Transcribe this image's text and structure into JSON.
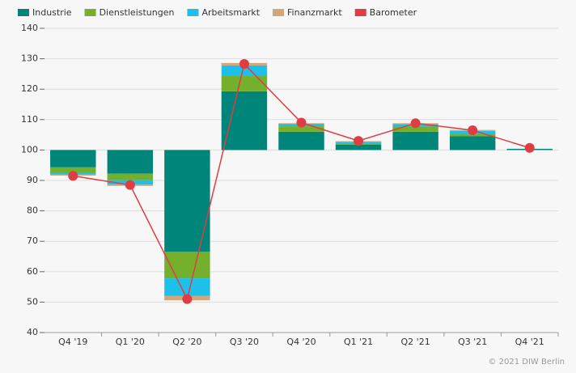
{
  "chart_data": {
    "type": "bar",
    "categories": [
      "Q4 '19",
      "Q1 '20",
      "Q2 '20",
      "Q3 '20",
      "Q4 '20",
      "Q1 '21",
      "Q2 '21",
      "Q3 '21",
      "Q4 '21"
    ],
    "baseline": 100,
    "series": [
      {
        "name": "Industrie",
        "color": "#00857a",
        "values": [
          -5.7,
          -7.8,
          -33.4,
          19.3,
          6.0,
          1.8,
          6.0,
          4.5,
          0.4
        ]
      },
      {
        "name": "Dienstleistungen",
        "color": "#74b02c",
        "values": [
          -1.9,
          -2.1,
          -8.8,
          5.0,
          1.8,
          0.4,
          1.7,
          0.8,
          0
        ]
      },
      {
        "name": "Arbeitsmarkt",
        "color": "#1ec0e9",
        "values": [
          -0.5,
          -1.5,
          -5.8,
          3.5,
          0.8,
          0.5,
          0.8,
          1.0,
          0
        ]
      },
      {
        "name": "Finanzmarkt",
        "color": "#d2a679",
        "values": [
          -0.3,
          -0.4,
          -1.4,
          0.8,
          0.2,
          0.2,
          0.3,
          0.3,
          0
        ]
      },
      {
        "name": "Barometer",
        "color": "#e03c44",
        "type": "line",
        "values": [
          91.5,
          88.5,
          51.0,
          128.3,
          109.0,
          103.0,
          108.8,
          106.5,
          100.7
        ]
      }
    ],
    "ylim": [
      40,
      140
    ],
    "yticks": [
      40,
      50,
      60,
      70,
      80,
      90,
      100,
      110,
      120,
      130,
      140
    ],
    "grid": true,
    "credits": "© 2021 DIW Berlin"
  }
}
